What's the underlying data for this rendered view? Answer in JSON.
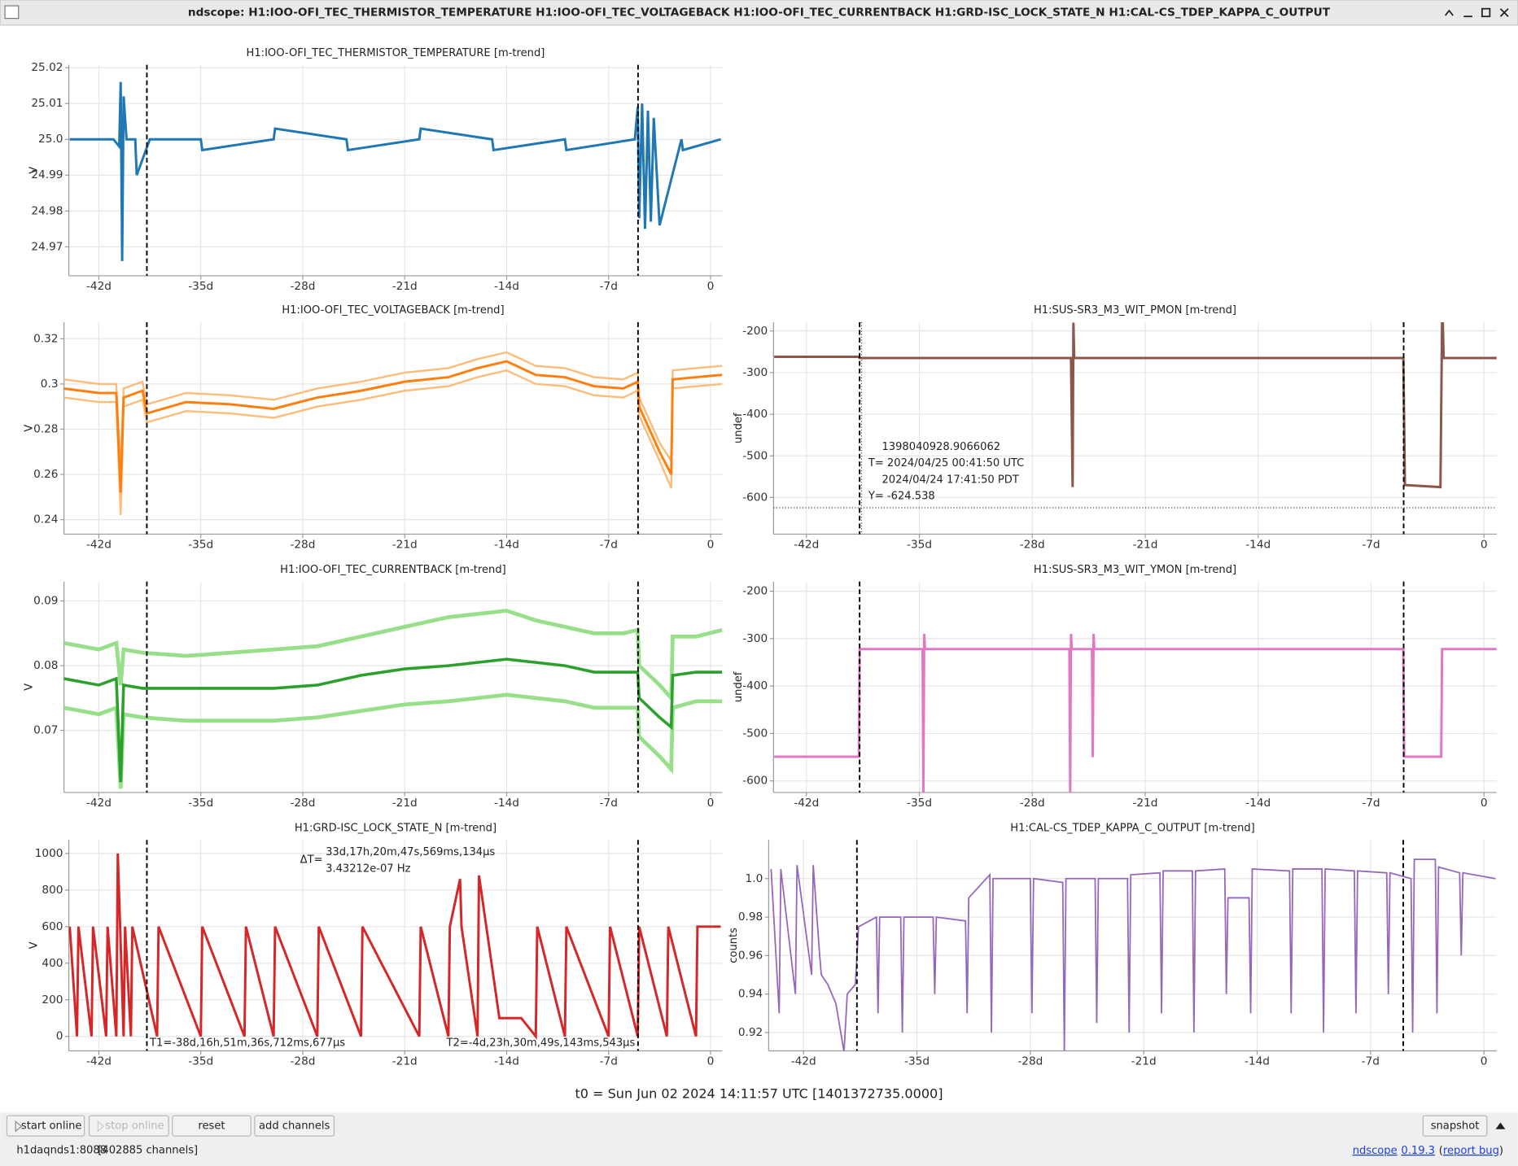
{
  "window": {
    "title": "ndscope: H1:IOO-OFI_TEC_THERMISTOR_TEMPERATURE H1:IOO-OFI_TEC_VOLTAGEBACK H1:IOO-OFI_TEC_CURRENTBACK H1:GRD-ISC_LOCK_STATE_N H1:CAL-CS_TDEP_KAPPA_C_OUTPUT"
  },
  "cursors": [
    -38.7025,
    -4.9799
  ],
  "t0": "t0 = Sun Jun 02 2024 14:11:57 UTC [1401372735.0000]",
  "buttons": [
    "start online",
    "stop online",
    "reset",
    "add channels",
    "snapshot"
  ],
  "status": {
    "host": "h1daqnds1:8088",
    "channels": "[402885 channels]",
    "links": [
      {
        "text": "ndscope",
        "link": true
      },
      {
        "text": "0.19.3",
        "link": true
      },
      {
        "text": "(",
        "link": false
      },
      {
        "text": "report bug",
        "link": true
      },
      {
        "text": ")",
        "link": false
      }
    ]
  },
  "chart_data": [
    {
      "type": "line",
      "title": "H1:IOO-OFI_TEC_THERMISTOR_TEMPERATURE [m-trend]",
      "y_label": "V",
      "grid": true,
      "xlim": [
        -44.06,
        0.8
      ],
      "ylim": [
        24.9619,
        25.0208
      ],
      "xticks": [
        {
          "value": -42,
          "label": "-42d"
        },
        {
          "value": -35,
          "label": "-35d"
        },
        {
          "value": -28,
          "label": "-28d"
        },
        {
          "value": -21,
          "label": "-21d"
        },
        {
          "value": -14,
          "label": "-14d"
        },
        {
          "value": -7,
          "label": "-7d"
        },
        0
      ],
      "yticks": [
        24.97,
        24.98,
        24.99,
        {
          "value": 25,
          "label": "25.0"
        },
        25.01,
        25.02
      ],
      "x": [
        -44,
        -41,
        -40.6,
        -40.5,
        -40.4,
        -40.3,
        -40.1,
        -39.5,
        -39.4,
        -38.5,
        -35,
        -34.9,
        -30,
        -29.9,
        -25,
        -24.9,
        -20,
        -19.9,
        -15,
        -14.9,
        -10,
        -9.9,
        -5.2,
        -5.0,
        -4.9,
        -4.7,
        -4.5,
        -4.3,
        -4.1,
        -3.9,
        -3.5,
        -2,
        -1.9,
        0.7
      ],
      "series": [
        {
          "color": "#1f77b4",
          "width": 2.5,
          "values": [
            25.0,
            25.0,
            24.998,
            25.016,
            24.966,
            25.012,
            25.0,
            25.0,
            24.99,
            25.0,
            25.0,
            24.997,
            25.0,
            25.003,
            25.0,
            24.997,
            25.0,
            25.003,
            25.0,
            24.997,
            25.0,
            24.997,
            25.0,
            25.009,
            24.978,
            25.01,
            24.975,
            25.008,
            24.977,
            25.006,
            24.976,
            25.0,
            24.997,
            25.0
          ]
        }
      ]
    },
    {
      "type": "line",
      "title": "H1:IOO-OFI_TEC_VOLTAGEBACK [m-trend]",
      "y_label": "V",
      "grid": true,
      "xlim": [
        -44.39,
        0.8
      ],
      "ylim": [
        0.2336,
        0.3273
      ],
      "xticks": [
        {
          "value": -42,
          "label": "-42d"
        },
        {
          "value": -35,
          "label": "-35d"
        },
        {
          "value": -28,
          "label": "-28d"
        },
        {
          "value": -21,
          "label": "-21d"
        },
        {
          "value": -14,
          "label": "-14d"
        },
        {
          "value": -7,
          "label": "-7d"
        },
        0
      ],
      "yticks": [
        0.24,
        0.26,
        0.28,
        0.3,
        0.32
      ],
      "x": [
        -44.4,
        -42,
        -40.8,
        -40.5,
        -40.3,
        -39,
        -38.7,
        -36,
        -33,
        -30,
        -27,
        -24,
        -21,
        -18,
        -16,
        -14,
        -12,
        -10,
        -8,
        -6,
        -5.0,
        -4.9,
        -3.5,
        -2.7,
        -2.6,
        -1,
        0.8
      ],
      "series": [
        {
          "color": "#ffbb78",
          "width": 2,
          "values": [
            0.294,
            0.292,
            0.292,
            0.242,
            0.29,
            0.293,
            0.283,
            0.288,
            0.287,
            0.285,
            0.29,
            0.293,
            0.297,
            0.299,
            0.303,
            0.306,
            0.3,
            0.299,
            0.295,
            0.294,
            0.297,
            0.286,
            0.266,
            0.254,
            0.298,
            0.299,
            0.3
          ]
        },
        {
          "color": "#ffbb78",
          "width": 2,
          "values": [
            0.302,
            0.3,
            0.3,
            0.262,
            0.298,
            0.301,
            0.291,
            0.296,
            0.295,
            0.293,
            0.298,
            0.301,
            0.305,
            0.307,
            0.311,
            0.314,
            0.308,
            0.307,
            0.303,
            0.302,
            0.305,
            0.294,
            0.274,
            0.266,
            0.306,
            0.307,
            0.308
          ]
        },
        {
          "color": "#ff7f0e",
          "width": 2.5,
          "values": [
            0.298,
            0.296,
            0.296,
            0.252,
            0.294,
            0.297,
            0.287,
            0.292,
            0.291,
            0.289,
            0.294,
            0.297,
            0.301,
            0.303,
            0.307,
            0.31,
            0.304,
            0.303,
            0.299,
            0.298,
            0.301,
            0.29,
            0.27,
            0.26,
            0.302,
            0.303,
            0.304
          ]
        }
      ]
    },
    {
      "type": "line",
      "title": "H1:IOO-OFI_TEC_CURRENTBACK [m-trend]",
      "y_label": "V",
      "grid": true,
      "xlim": [
        -44.39,
        0.8
      ],
      "ylim": [
        0.0604,
        0.093
      ],
      "xticks": [
        {
          "value": -42,
          "label": "-42d"
        },
        {
          "value": -35,
          "label": "-35d"
        },
        {
          "value": -28,
          "label": "-28d"
        },
        {
          "value": -21,
          "label": "-21d"
        },
        {
          "value": -14,
          "label": "-14d"
        },
        {
          "value": -7,
          "label": "-7d"
        },
        0
      ],
      "yticks": [
        0.07,
        0.08,
        0.09
      ],
      "x": [
        -44.4,
        -42,
        -40.8,
        -40.5,
        -40.3,
        -39,
        -36,
        -33,
        -30,
        -27,
        -24,
        -21,
        -18,
        -14,
        -12,
        -10,
        -8,
        -6,
        -5.0,
        -4.9,
        -3.5,
        -2.7,
        -2.6,
        -1,
        0.8
      ],
      "series": [
        {
          "color": "#98df8a",
          "width": 4,
          "values": [
            0.0835,
            0.0825,
            0.0835,
            0.077,
            0.0825,
            0.082,
            0.0815,
            0.082,
            0.0825,
            0.083,
            0.0845,
            0.086,
            0.0875,
            0.0885,
            0.087,
            0.086,
            0.085,
            0.085,
            0.0855,
            0.08,
            0.077,
            0.075,
            0.0845,
            0.0845,
            0.0855
          ]
        },
        {
          "color": "#98df8a",
          "width": 4,
          "values": [
            0.0735,
            0.0725,
            0.0735,
            0.061,
            0.0725,
            0.072,
            0.0715,
            0.0715,
            0.0715,
            0.072,
            0.073,
            0.074,
            0.0745,
            0.0755,
            0.075,
            0.0745,
            0.0735,
            0.0735,
            0.0735,
            0.069,
            0.066,
            0.064,
            0.0735,
            0.0745,
            0.0745
          ]
        },
        {
          "color": "#2ca02c",
          "width": 3,
          "values": [
            0.078,
            0.077,
            0.078,
            0.062,
            0.077,
            0.0765,
            0.0765,
            0.0765,
            0.0765,
            0.077,
            0.0785,
            0.0795,
            0.08,
            0.081,
            0.0805,
            0.08,
            0.079,
            0.079,
            0.079,
            0.075,
            0.072,
            0.0705,
            0.0785,
            0.079,
            0.079
          ]
        }
      ]
    },
    {
      "type": "line",
      "title": "H1:GRD-ISC_LOCK_STATE_N [m-trend]",
      "y_label": "V",
      "grid": true,
      "xlim": [
        -44.06,
        0.8
      ],
      "ylim": [
        -79,
        1074
      ],
      "xticks": [
        {
          "value": -42,
          "label": "-42d"
        },
        {
          "value": -35,
          "label": "-35d"
        },
        {
          "value": -28,
          "label": "-28d"
        },
        {
          "value": -21,
          "label": "-21d"
        },
        {
          "value": -14,
          "label": "-14d"
        },
        {
          "value": -7,
          "label": "-7d"
        },
        0
      ],
      "yticks": [
        0,
        200,
        400,
        600,
        800,
        1000
      ],
      "x": [
        -44,
        -43.5,
        -43.4,
        -42.5,
        -42.4,
        -41.5,
        -41.4,
        -40.8,
        -40.7,
        -40.3,
        -40.2,
        -39.8,
        -39.7,
        -38,
        -37.9,
        -35,
        -34.9,
        -32,
        -31.9,
        -30,
        -29.9,
        -27,
        -26.9,
        -24,
        -23.9,
        -20,
        -19.9,
        -18,
        -17.9,
        -17.2,
        -17.1,
        -16,
        -15.9,
        -14.5,
        -13,
        -12,
        -11.9,
        -10,
        -9.9,
        -7,
        -6.9,
        -5,
        -4.9,
        -3,
        -2.9,
        -1,
        -0.9,
        0.7
      ],
      "series": [
        {
          "color": "#d62728",
          "width": 2.5,
          "values": [
            600,
            0,
            600,
            0,
            600,
            0,
            600,
            0,
            1000,
            0,
            600,
            0,
            600,
            0,
            600,
            0,
            600,
            0,
            600,
            0,
            600,
            0,
            600,
            0,
            600,
            0,
            600,
            0,
            600,
            860,
            600,
            0,
            880,
            100,
            100,
            0,
            600,
            0,
            600,
            0,
            600,
            0,
            600,
            0,
            600,
            0,
            600,
            600
          ]
        }
      ],
      "cursor_labels": {
        "t1": "T1=-38d,16h,51m,36s,712ms,677μs",
        "t2": "T2=-4d,23h,30m,49s,143ms,543μs",
        "delta_prefix": "ΔT=",
        "delta": "33d,17h,20m,47s,569ms,134μs",
        "frequency": "3.43212e-07 Hz"
      }
    },
    {
      "type": "line",
      "title": "H1:SUS-SR3_M3_WIT_PMON [m-trend]",
      "y_label": "undef",
      "grid": true,
      "xlim": [
        -44.04,
        0.78
      ],
      "ylim": [
        -688,
        -179
      ],
      "xticks": [
        {
          "value": -42,
          "label": "-42d"
        },
        {
          "value": -35,
          "label": "-35d"
        },
        {
          "value": -28,
          "label": "-28d"
        },
        {
          "value": -21,
          "label": "-21d"
        },
        {
          "value": -14,
          "label": "-14d"
        },
        {
          "value": -7,
          "label": "-7d"
        },
        0
      ],
      "yticks": [
        -600,
        -500,
        -400,
        -300,
        -200
      ],
      "x": [
        -44,
        -38.8,
        -38.7,
        -25.6,
        -25.5,
        -25.45,
        -25.4,
        -5.0,
        -4.9,
        -2.7,
        -2.6,
        -2.55,
        -2.5,
        0.8
      ],
      "series": [
        {
          "color": "#8c564b",
          "width": 2.5,
          "values": [
            -262,
            -262,
            -265,
            -265,
            -575,
            -180,
            -265,
            -265,
            -570,
            -575,
            -180,
            -180,
            -265,
            -265
          ]
        }
      ],
      "crosshair": {
        "y": -624.538,
        "lines": [
          "1398040928.9066062",
          "T= 2024/04/25 00:41:50 UTC",
          "2024/04/24 17:41:50 PDT",
          "Y= -624.538"
        ]
      }
    },
    {
      "type": "line",
      "title": "H1:SUS-SR3_M3_WIT_YMON [m-trend]",
      "y_label": "undef",
      "grid": true,
      "xlim": [
        -44.04,
        0.78
      ],
      "ylim": [
        -624.5,
        -179.6
      ],
      "xticks": [
        {
          "value": -42,
          "label": "-42d"
        },
        {
          "value": -35,
          "label": "-35d"
        },
        {
          "value": -28,
          "label": "-28d"
        },
        {
          "value": -21,
          "label": "-21d"
        },
        {
          "value": -14,
          "label": "-14d"
        },
        {
          "value": -7,
          "label": "-7d"
        },
        0
      ],
      "yticks": [
        -600,
        -500,
        -400,
        -300,
        -200
      ],
      "x": [
        -44,
        -38.75,
        -38.7,
        -34.8,
        -34.75,
        -34.7,
        -34.65,
        -25.7,
        -25.65,
        -25.6,
        -25.55,
        -24.3,
        -24.25,
        -24.2,
        -24.15,
        -5.0,
        -4.95,
        -2.65,
        -2.6,
        0.8
      ],
      "series": [
        {
          "color": "#e377c2",
          "width": 2.5,
          "values": [
            -549,
            -549,
            -322,
            -322,
            -625,
            -290,
            -322,
            -322,
            -625,
            -290,
            -322,
            -322,
            -550,
            -290,
            -322,
            -322,
            -549,
            -549,
            -322,
            -322
          ]
        }
      ]
    },
    {
      "type": "line",
      "title": "H1:CAL-CS_TDEP_KAPPA_C_OUTPUT [m-trend]",
      "y_label": "counts",
      "grid": true,
      "xlim": [
        -44.15,
        0.78
      ],
      "ylim": [
        0.9105,
        1.0201
      ],
      "xticks": [
        {
          "value": -42,
          "label": "-42d"
        },
        {
          "value": -35,
          "label": "-35d"
        },
        {
          "value": -28,
          "label": "-28d"
        },
        {
          "value": -21,
          "label": "-21d"
        },
        {
          "value": -14,
          "label": "-14d"
        },
        {
          "value": -7,
          "label": "-7d"
        },
        0
      ],
      "yticks": [
        0.92,
        0.94,
        0.96,
        0.98,
        {
          "value": 1,
          "label": "1.0"
        }
      ],
      "x": [
        -44,
        -43.5,
        -43.4,
        -42.5,
        -42.4,
        -41.5,
        -41.4,
        -41,
        -40.9,
        -40.5,
        -40,
        -39.5,
        -39.3,
        -38.8,
        -38.6,
        -37.5,
        -37.4,
        -37.3,
        -36,
        -35.9,
        -35.8,
        -34,
        -33.9,
        -33.8,
        -32,
        -31.9,
        -31.8,
        -30.5,
        -30.4,
        -30.3,
        -28,
        -27.9,
        -27.8,
        -26,
        -25.9,
        -25.8,
        -24,
        -23.9,
        -23.8,
        -22,
        -21.9,
        -21.8,
        -20,
        -19.9,
        -19.8,
        -18,
        -17.9,
        -17.8,
        -16,
        -15.9,
        -15.8,
        -14.5,
        -14.4,
        -14.3,
        -12,
        -11.9,
        -11.8,
        -10,
        -9.9,
        -9.8,
        -8,
        -7.9,
        -7.8,
        -6,
        -5.9,
        -5.8,
        -4.5,
        -4.4,
        -4.3,
        -3,
        -2.9,
        -2.8,
        -1.5,
        -1.4,
        -1.3,
        0.7
      ],
      "series": [
        {
          "color": "#9467bd",
          "width": 1.5,
          "values": [
            1.005,
            0.93,
            1.005,
            0.94,
            1.007,
            0.95,
            1.007,
            0.96,
            0.95,
            0.945,
            0.935,
            0.91,
            0.94,
            0.945,
            0.975,
            0.98,
            0.93,
            0.98,
            0.98,
            0.92,
            0.98,
            0.98,
            0.94,
            0.98,
            0.978,
            0.93,
            0.99,
            1.002,
            0.92,
            1.0,
            1.0,
            0.93,
            1.0,
            0.998,
            0.91,
            1.0,
            1.0,
            0.925,
            1.0,
            1.0,
            0.92,
            1.002,
            1.003,
            0.93,
            1.004,
            1.004,
            0.92,
            1.004,
            1.005,
            0.94,
            0.99,
            0.99,
            0.93,
            1.005,
            1.004,
            0.93,
            1.005,
            1.005,
            0.92,
            1.005,
            1.004,
            0.93,
            1.004,
            1.003,
            0.94,
            1.003,
            1.0,
            0.92,
            1.01,
            1.01,
            0.93,
            1.006,
            1.003,
            0.96,
            1.003,
            1.0
          ]
        }
      ]
    }
  ]
}
